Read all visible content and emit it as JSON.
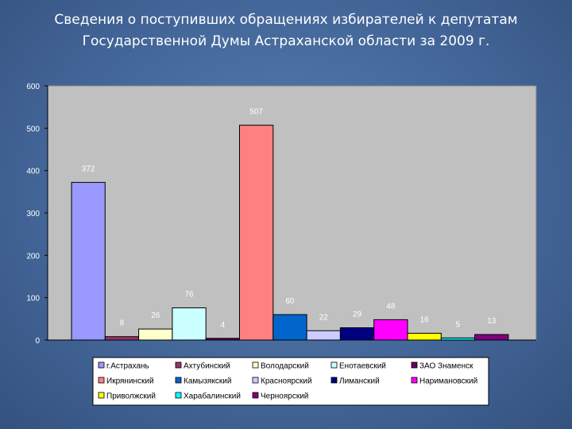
{
  "slide": {
    "title_line1": "Сведения о поступивших  обращениях избирателей к депутатам",
    "title_line2": "Государственной Думы Астраханской области за 2009 г."
  },
  "chart_data": {
    "type": "bar",
    "title": "",
    "xlabel": "",
    "ylabel": "",
    "ylim": [
      0,
      600
    ],
    "yticks": [
      "0",
      "100",
      "200",
      "300",
      "400",
      "500",
      "600"
    ],
    "grid": false,
    "legend_position": "bottom",
    "plot_background": "#c0c0c0",
    "categories": [
      "г.Астрахань",
      "Ахтубинский",
      "Володарский",
      "Енотаевский",
      "ЗАО Знаменск",
      "Икрянинский",
      "Камызякский",
      "Красноярский",
      "Лиманский",
      "Наримановский",
      "Приволжский",
      "Харабалинский",
      "Черноярский"
    ],
    "values": [
      372,
      8,
      26,
      76,
      4,
      507,
      60,
      22,
      29,
      48,
      16,
      5,
      13
    ],
    "bar_order": [
      0,
      1,
      2,
      3,
      4,
      5,
      6,
      7,
      8,
      9,
      10,
      11,
      12
    ],
    "colors": [
      "#9999ff",
      "#993366",
      "#ffffcc",
      "#ccffff",
      "#660066",
      "#ff8080",
      "#0066cc",
      "#ccccff",
      "#000080",
      "#ff00ff",
      "#ffff00",
      "#00ffff",
      "#800080"
    ]
  }
}
